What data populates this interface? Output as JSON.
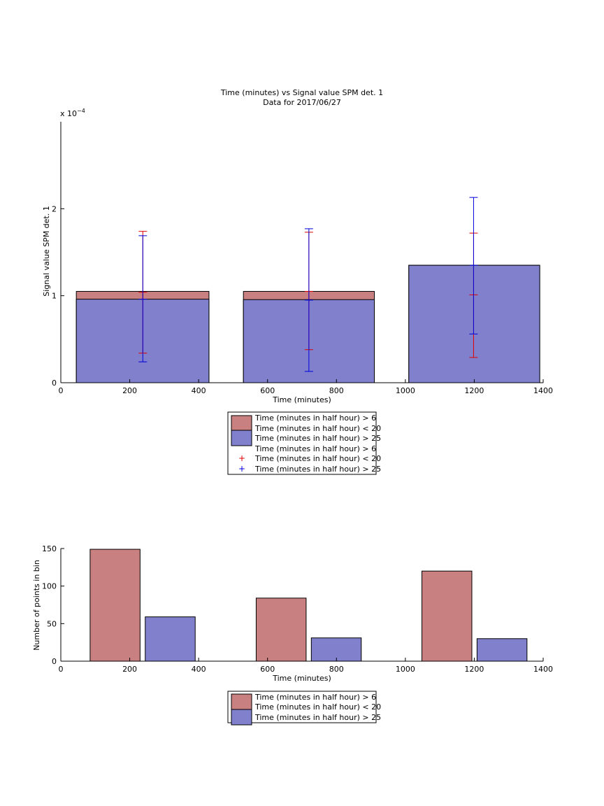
{
  "colors": {
    "red_fill": "#c98080",
    "blue_fill": "#8080cc",
    "red_err": "#dd0000",
    "blue_err": "#0000dd"
  },
  "chart_data": [
    {
      "type": "bar",
      "title": "Time (minutes) vs Signal value SPM det. 1",
      "subtitle": "Data for 2017/06/27",
      "xlabel": "Time (minutes)",
      "ylabel": "Signal value SPM det. 1",
      "y_exponent": "x 10",
      "y_exponent_power": "−4",
      "xlim": [
        0,
        1400
      ],
      "ylim": [
        0,
        3
      ],
      "x_ticks": [
        "0",
        "200",
        "400",
        "600",
        "800",
        "1000",
        "1200",
        "1400"
      ],
      "y_ticks": [
        "0",
        "1",
        "2"
      ],
      "legend_position": "below",
      "bars": [
        {
          "x0": 45,
          "x1": 430,
          "red": 1.05,
          "blue": 0.96
        },
        {
          "x0": 530,
          "x1": 910,
          "red": 1.05,
          "blue": 0.955
        },
        {
          "x0": 1010,
          "x1": 1390,
          "red": 1.35,
          "blue": 1.35
        }
      ],
      "error_bars": [
        {
          "x": 238,
          "red_low": 0.34,
          "red_high": 1.74,
          "blue_low": 0.24,
          "blue_high": 1.69,
          "red_mid": 1.04,
          "blue_mid": 0.96
        },
        {
          "x": 720,
          "red_low": 0.38,
          "red_high": 1.73,
          "blue_low": 0.13,
          "blue_high": 1.77,
          "red_mid": 1.05,
          "blue_mid": 0.95
        },
        {
          "x": 1198,
          "red_low": 0.29,
          "red_high": 1.72,
          "blue_low": 0.56,
          "blue_high": 2.13,
          "red_mid": 1.01,
          "blue_mid": 1.35
        }
      ],
      "legend": [
        {
          "label": "Time (minutes in half hour) > 6",
          "marker": "red-bar"
        },
        {
          "label": "Time (minutes in half hour) < 20",
          "marker": "none"
        },
        {
          "label": "Time (minutes in half hour) > 25",
          "marker": "blue-bar"
        },
        {
          "label": "Time (minutes in half hour) > 6",
          "marker": "none"
        },
        {
          "label": "Time (minutes in half hour) < 20",
          "marker": "red-plus"
        },
        {
          "label": "Time (minutes in half hour) > 25",
          "marker": "blue-plus"
        }
      ]
    },
    {
      "type": "bar",
      "xlabel": "Time (minutes)",
      "ylabel": "Number of points in bin",
      "xlim": [
        0,
        1400
      ],
      "ylim": [
        0,
        150
      ],
      "x_ticks": [
        "0",
        "200",
        "400",
        "600",
        "800",
        "1000",
        "1200",
        "1400"
      ],
      "y_ticks": [
        "0",
        "50",
        "100",
        "150"
      ],
      "legend_position": "below",
      "bars": [
        {
          "x0": 85,
          "x1": 230,
          "value": 149,
          "series": "red"
        },
        {
          "x0": 245,
          "x1": 390,
          "value": 59,
          "series": "blue"
        },
        {
          "x0": 567,
          "x1": 712,
          "value": 84,
          "series": "red"
        },
        {
          "x0": 727,
          "x1": 872,
          "value": 31,
          "series": "blue"
        },
        {
          "x0": 1048,
          "x1": 1193,
          "value": 120,
          "series": "red"
        },
        {
          "x0": 1208,
          "x1": 1353,
          "value": 30,
          "series": "blue"
        }
      ],
      "legend": [
        {
          "label": "Time (minutes in half hour) > 6",
          "marker": "red-bar"
        },
        {
          "label": "Time (minutes in half hour) < 20",
          "marker": "none"
        },
        {
          "label": "Time (minutes in half hour) > 25",
          "marker": "blue-bar"
        }
      ]
    }
  ]
}
